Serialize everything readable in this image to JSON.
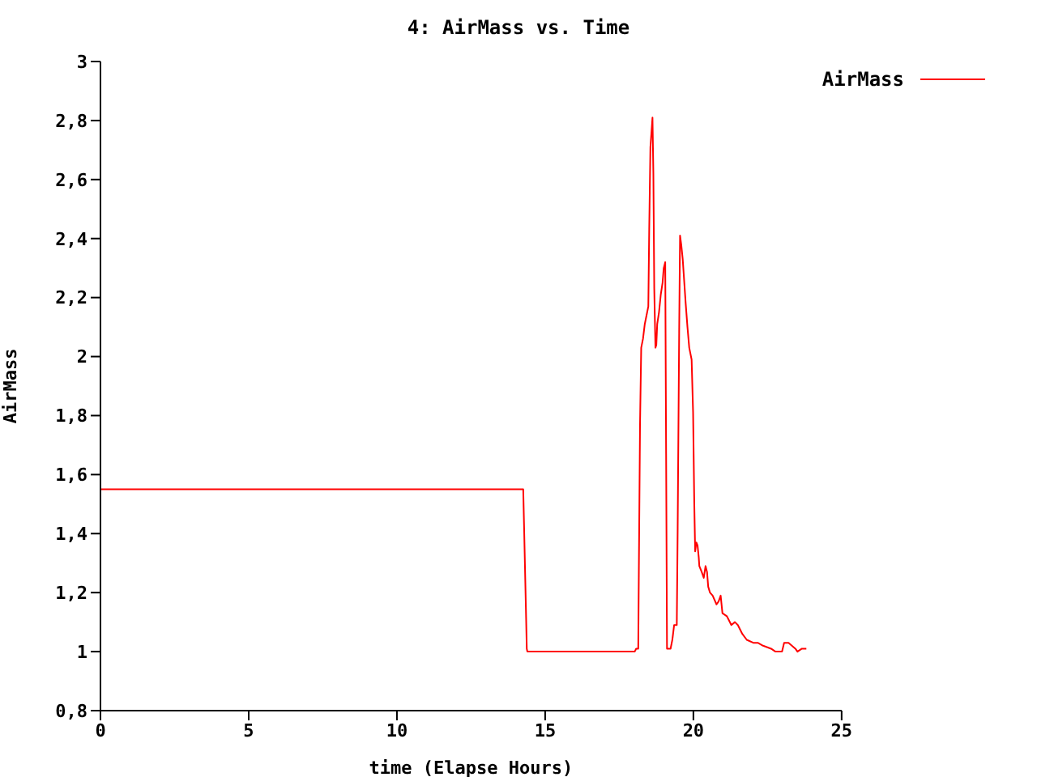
{
  "chart_data": {
    "type": "line",
    "title": "4: AirMass vs. Time",
    "xlabel": "time (Elapse Hours)",
    "ylabel": "AirMass",
    "xlim": [
      0,
      25
    ],
    "xticks": [
      0,
      5,
      10,
      15,
      20,
      25
    ],
    "ylim": [
      0.8,
      3
    ],
    "yticks": [
      {
        "value": 0.8,
        "label": "0,8"
      },
      1,
      {
        "value": 1.2,
        "label": "1,2"
      },
      {
        "value": 1.4,
        "label": "1,4"
      },
      {
        "value": 1.6,
        "label": "1,6"
      },
      {
        "value": 1.8,
        "label": "1,8"
      },
      2,
      {
        "value": 2.2,
        "label": "2,2"
      },
      {
        "value": 2.4,
        "label": "2,4"
      },
      {
        "value": 2.6,
        "label": "2,6"
      },
      {
        "value": 2.8,
        "label": "2,8"
      },
      3
    ],
    "legend": "top right",
    "series": [
      {
        "name": "AirMass",
        "color": "#ff0000",
        "x": [
          0,
          14.26,
          14.29,
          14.35,
          14.38,
          14.4,
          18.02,
          18.07,
          18.14,
          18.16,
          18.2,
          18.24,
          18.3,
          18.36,
          18.42,
          18.48,
          18.51,
          18.55,
          18.6,
          18.62,
          18.65,
          18.68,
          18.72,
          18.75,
          18.78,
          18.84,
          18.9,
          18.96,
          19.0,
          19.05,
          19.08,
          19.11,
          19.23,
          19.29,
          19.35,
          19.44,
          19.47,
          19.52,
          19.55,
          19.59,
          19.64,
          19.7,
          19.74,
          19.8,
          19.86,
          19.94,
          19.99,
          20.03,
          20.06,
          20.1,
          20.14,
          20.18,
          20.2,
          20.28,
          20.35,
          20.41,
          20.46,
          20.5,
          20.56,
          20.65,
          20.78,
          20.85,
          20.92,
          20.98,
          21.13,
          21.28,
          21.4,
          21.5,
          21.65,
          21.8,
          22.02,
          22.17,
          22.35,
          22.62,
          22.77,
          22.99,
          23.06,
          23.21,
          23.44,
          23.51,
          23.66,
          23.81
        ],
        "values": [
          1.55,
          1.55,
          1.42,
          1.15,
          1.01,
          1.0,
          1.0,
          1.01,
          1.01,
          1.27,
          1.77,
          2.03,
          2.06,
          2.11,
          2.14,
          2.17,
          2.43,
          2.71,
          2.78,
          2.81,
          2.62,
          2.23,
          2.03,
          2.04,
          2.11,
          2.15,
          2.21,
          2.25,
          2.3,
          2.32,
          1.67,
          1.01,
          1.01,
          1.04,
          1.09,
          1.09,
          1.42,
          2.08,
          2.41,
          2.38,
          2.33,
          2.24,
          2.18,
          2.1,
          2.03,
          1.99,
          1.81,
          1.5,
          1.34,
          1.37,
          1.36,
          1.32,
          1.29,
          1.27,
          1.25,
          1.29,
          1.27,
          1.22,
          1.2,
          1.19,
          1.16,
          1.17,
          1.19,
          1.13,
          1.12,
          1.09,
          1.1,
          1.09,
          1.06,
          1.04,
          1.03,
          1.03,
          1.02,
          1.01,
          1.0,
          1.0,
          1.03,
          1.03,
          1.01,
          1.0,
          1.01,
          1.01
        ]
      }
    ]
  }
}
